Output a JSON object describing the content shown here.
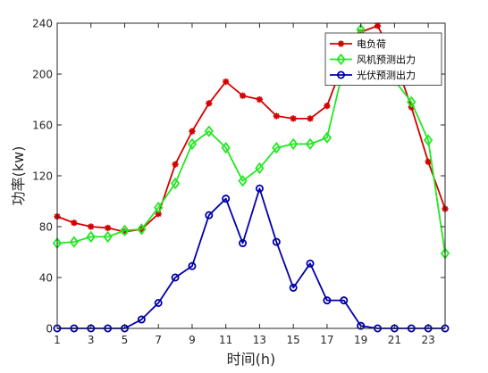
{
  "chart_data": {
    "type": "line",
    "title": "",
    "xlabel": "时间(h)",
    "ylabel": "功率(kw)",
    "xlim": [
      1,
      24
    ],
    "ylim": [
      0,
      240
    ],
    "x_ticks": [
      1,
      3,
      5,
      7,
      9,
      11,
      13,
      15,
      17,
      19,
      21,
      23
    ],
    "y_ticks": [
      0,
      40,
      80,
      120,
      160,
      200,
      240
    ],
    "grid": false,
    "legend_position": "top-right",
    "x": [
      1,
      2,
      3,
      4,
      5,
      6,
      7,
      8,
      9,
      10,
      11,
      12,
      13,
      14,
      15,
      16,
      17,
      18,
      19,
      20,
      21,
      22,
      23,
      24
    ],
    "series": [
      {
        "name": "电负荷",
        "color": "#d40000",
        "marker": "asterisk",
        "values": [
          88,
          83,
          80,
          79,
          76,
          78,
          90,
          129,
          155,
          177,
          194,
          183,
          180,
          167,
          165,
          165,
          175,
          210,
          233,
          238,
          212,
          174,
          131,
          94
        ]
      },
      {
        "name": "风机预测出力",
        "color": "#22e822",
        "marker": "diamond",
        "values": [
          67,
          68,
          72,
          72,
          77,
          78,
          95,
          114,
          145,
          155,
          142,
          116,
          126,
          142,
          145,
          145,
          150,
          206,
          235,
          204,
          195,
          178,
          148,
          59
        ]
      },
      {
        "name": "光伏预测出力",
        "color": "#0000aa",
        "marker": "circle",
        "values": [
          0,
          0,
          0,
          0,
          0,
          7,
          20,
          40,
          49,
          89,
          102,
          67,
          110,
          68,
          32,
          51,
          22,
          22,
          2,
          0,
          0,
          0,
          0,
          0
        ]
      }
    ]
  }
}
